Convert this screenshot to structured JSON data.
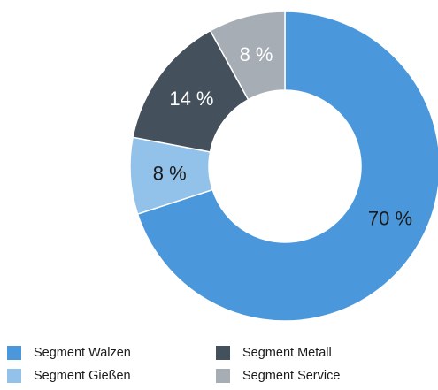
{
  "chart_data": {
    "type": "pie",
    "donut": true,
    "slices": [
      {
        "name": "Segment Walzen",
        "value": 70,
        "label": "70 %",
        "color": "#4a98db",
        "label_color": "#1a1a1a"
      },
      {
        "name": "Segment Gießen",
        "value": 8,
        "label": "8 %",
        "color": "#92c1e9",
        "label_color": "#1a1a1a"
      },
      {
        "name": "Segment Metall",
        "value": 14,
        "label": "14 %",
        "color": "#44505c",
        "label_color": "#ffffff"
      },
      {
        "name": "Segment Service",
        "value": 8,
        "label": "8 %",
        "color": "#a6adb5",
        "label_color": "#ffffff"
      }
    ],
    "start": "12 o'clock",
    "direction": "clockwise",
    "legend_position": "bottom"
  },
  "legend": {
    "items": [
      {
        "label": "Segment Walzen",
        "color": "#4a98db"
      },
      {
        "label": "Segment Metall",
        "color": "#44505c"
      },
      {
        "label": "Segment Gießen",
        "color": "#92c1e9"
      },
      {
        "label": "Segment Service",
        "color": "#a6adb5"
      }
    ]
  }
}
